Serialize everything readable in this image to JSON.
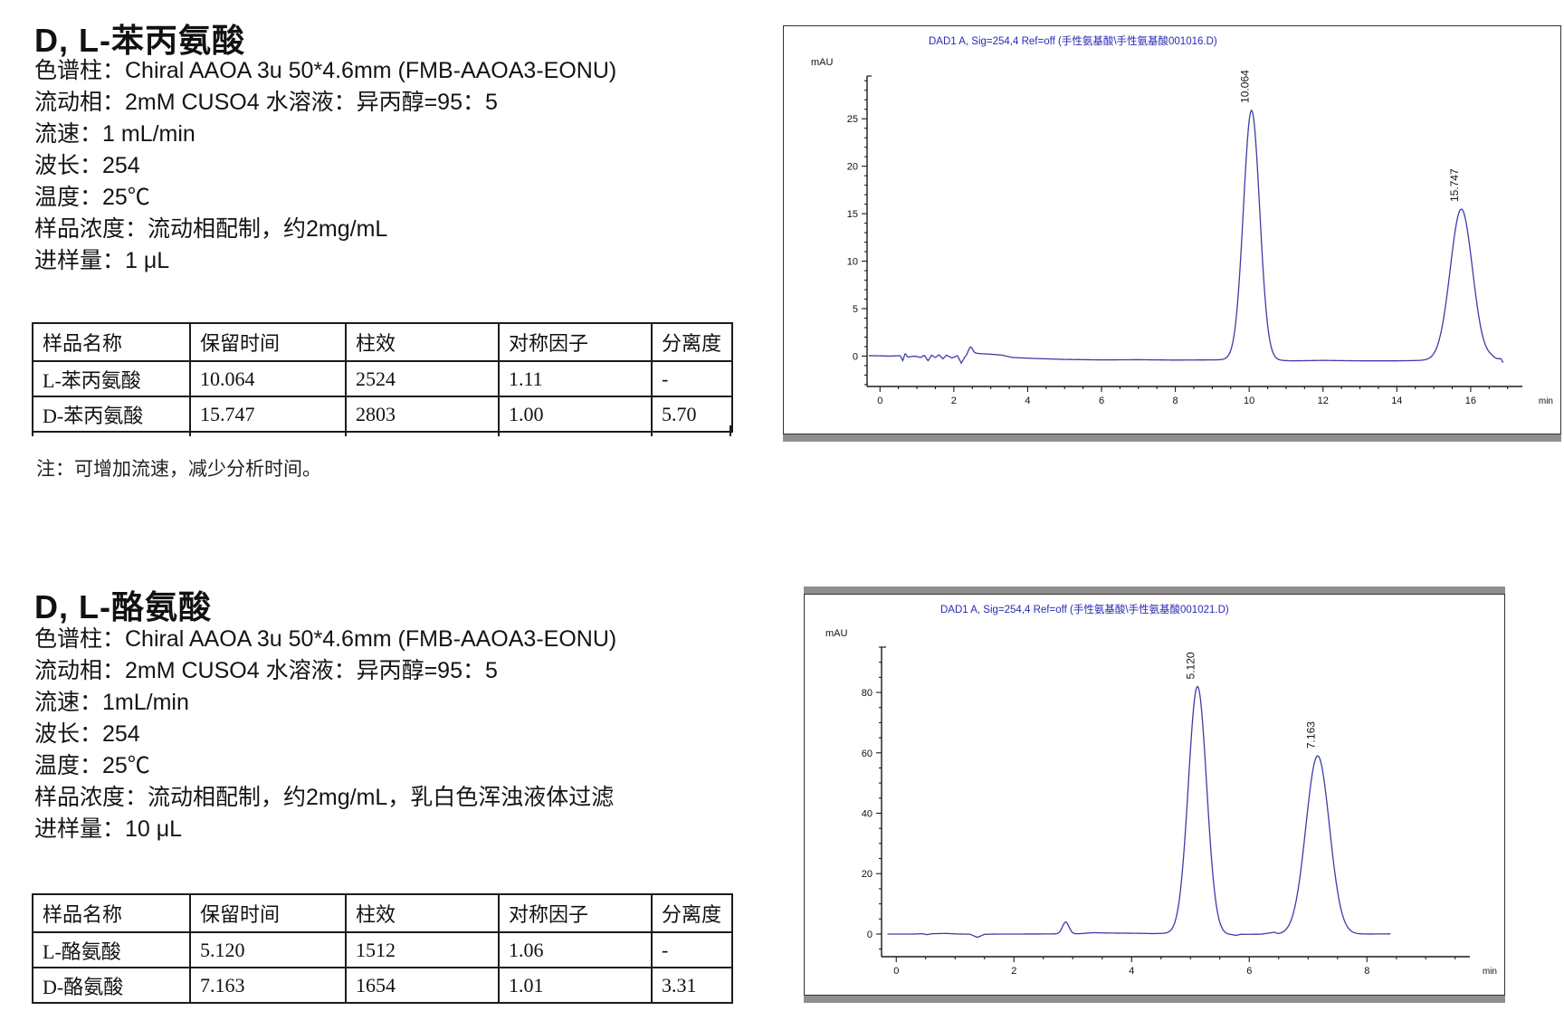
{
  "sections": [
    {
      "title": "D, L-苯丙氨酸",
      "params": [
        "色谱柱：Chiral AAOA 3u 50*4.6mm (FMB-AAOA3-EONU)",
        "流动相：2mM CUSO4 水溶液：异丙醇=95：5",
        "流速：1 mL/min",
        "波长：254",
        "温度：25℃",
        "样品浓度：流动相配制，约2mg/mL",
        "进样量：1 μL"
      ],
      "table": {
        "headers": [
          "样品名称",
          "保留时间",
          "柱效",
          "对称因子",
          "分离度"
        ],
        "rows": [
          [
            "L-苯丙氨酸",
            "10.064",
            "2524",
            "1.11",
            "-"
          ],
          [
            "D-苯丙氨酸",
            "15.747",
            "2803",
            "1.00",
            "5.70"
          ]
        ]
      },
      "note": "注：可增加流速，减少分析时间。"
    },
    {
      "title": "D, L-酪氨酸",
      "params": [
        "色谱柱：Chiral AAOA 3u 50*4.6mm (FMB-AAOA3-EONU)",
        "流动相：2mM CUSO4 水溶液：异丙醇=95：5",
        "流速：1mL/min",
        "波长：254",
        "温度：25℃",
        "样品浓度：流动相配制，约2mg/mL，乳白色浑浊液体过滤",
        "进样量：10 μL"
      ],
      "table": {
        "headers": [
          "样品名称",
          "保留时间",
          "柱效",
          "对称因子",
          "分离度"
        ],
        "rows": [
          [
            "L-酪氨酸",
            "5.120",
            "1512",
            "1.06",
            "-"
          ],
          [
            "D-酪氨酸",
            "7.163",
            "1654",
            "1.01",
            "3.31"
          ]
        ]
      },
      "note": ""
    }
  ],
  "chart_data": [
    {
      "type": "line",
      "title": "DAD1 A, Sig=254,4 Ref=off (手性氨基酸\\手性氨基酸001016.D)",
      "title_color": "#2a2ab2",
      "line_color": "#3c3ca8",
      "ylabel": "mAU",
      "xlabel": "min",
      "xlim": [
        -0.35,
        17.4
      ],
      "ylim": [
        -3.2,
        29.5
      ],
      "xticks": [
        0,
        2,
        4,
        6,
        8,
        10,
        12,
        14,
        16
      ],
      "yticks": [
        0,
        5,
        10,
        15,
        20,
        25
      ],
      "x_minor_step": 0.5,
      "y_minor_step": 1,
      "peaks": [
        {
          "label": "10.064",
          "center": 10.064,
          "height": 26.3,
          "sigma": 0.22
        },
        {
          "label": "15.747",
          "center": 15.747,
          "height": 15.9,
          "sigma": 0.3
        }
      ],
      "minor_peaks": [
        {
          "center": 2.45,
          "height": 0.85,
          "sigma": 0.06
        }
      ],
      "baseline": [
        [
          -0.3,
          0.05
        ],
        [
          0.3,
          0.0
        ],
        [
          0.55,
          0.05
        ],
        [
          0.62,
          -0.5
        ],
        [
          0.68,
          0.3
        ],
        [
          0.75,
          -0.1
        ],
        [
          0.95,
          0.0
        ],
        [
          1.1,
          -0.15
        ],
        [
          1.2,
          0.1
        ],
        [
          1.3,
          -0.5
        ],
        [
          1.4,
          0.1
        ],
        [
          1.5,
          -0.15
        ],
        [
          1.6,
          0.15
        ],
        [
          1.7,
          -0.3
        ],
        [
          1.8,
          0.1
        ],
        [
          1.95,
          -0.2
        ],
        [
          2.1,
          0.05
        ],
        [
          2.2,
          -0.75
        ],
        [
          2.3,
          -0.1
        ],
        [
          2.6,
          0.3
        ],
        [
          2.75,
          0.25
        ],
        [
          3.0,
          0.2
        ],
        [
          3.3,
          0.1
        ],
        [
          3.6,
          -0.15
        ],
        [
          4.2,
          -0.25
        ],
        [
          5.0,
          -0.35
        ],
        [
          6.0,
          -0.4
        ],
        [
          7.0,
          -0.38
        ],
        [
          8.0,
          -0.42
        ],
        [
          9.0,
          -0.4
        ],
        [
          9.4,
          -0.38
        ],
        [
          10.8,
          -0.45
        ],
        [
          11.2,
          -0.5
        ],
        [
          12.0,
          -0.45
        ],
        [
          13.0,
          -0.5
        ],
        [
          14.0,
          -0.5
        ],
        [
          14.8,
          -0.45
        ],
        [
          16.3,
          -0.4
        ],
        [
          16.55,
          -0.2
        ],
        [
          16.7,
          -0.35
        ],
        [
          16.82,
          -0.3
        ],
        [
          16.88,
          -0.7
        ]
      ],
      "trace_start": -0.3,
      "trace_end": 16.88
    },
    {
      "type": "line",
      "title": "DAD1 A, Sig=254,4 Ref=off (手性氨基酸\\手性氨基酸001021.D)",
      "title_color": "#2a2ab2",
      "line_color": "#3c3ca8",
      "ylabel": "mAU",
      "xlabel": "min",
      "xlim": [
        -0.25,
        9.75
      ],
      "ylim": [
        -7.5,
        95
      ],
      "xticks": [
        0,
        2,
        4,
        6,
        8
      ],
      "yticks": [
        0,
        20,
        40,
        60,
        80
      ],
      "x_minor_step": 0.5,
      "y_minor_step": 5,
      "peaks": [
        {
          "label": "5.120",
          "center": 5.12,
          "height": 82.0,
          "sigma": 0.155
        },
        {
          "label": "7.163",
          "center": 7.163,
          "height": 59.0,
          "sigma": 0.2
        }
      ],
      "minor_peaks": [
        {
          "center": 2.88,
          "height": 3.9,
          "sigma": 0.055
        }
      ],
      "baseline": [
        [
          -0.15,
          0.0
        ],
        [
          0.3,
          0.0
        ],
        [
          0.45,
          0.1
        ],
        [
          0.52,
          -0.2
        ],
        [
          0.6,
          0.1
        ],
        [
          0.7,
          0.15
        ],
        [
          0.85,
          0.2
        ],
        [
          1.0,
          0.05
        ],
        [
          1.25,
          -0.05
        ],
        [
          1.38,
          -1.1
        ],
        [
          1.5,
          -0.1
        ],
        [
          1.7,
          0.0
        ],
        [
          2.1,
          0.0
        ],
        [
          2.5,
          0.02
        ],
        [
          3.1,
          0.1
        ],
        [
          3.35,
          0.45
        ],
        [
          3.55,
          0.35
        ],
        [
          3.8,
          0.3
        ],
        [
          4.1,
          0.25
        ],
        [
          4.35,
          0.15
        ],
        [
          4.55,
          0.2
        ],
        [
          5.7,
          -0.25
        ],
        [
          5.78,
          -0.45
        ],
        [
          5.85,
          -0.1
        ],
        [
          6.2,
          -0.05
        ],
        [
          6.42,
          0.55
        ],
        [
          6.5,
          -0.05
        ],
        [
          6.9,
          0.0
        ],
        [
          7.9,
          0.0
        ],
        [
          8.15,
          0.02
        ],
        [
          8.4,
          0.05
        ]
      ],
      "trace_start": -0.15,
      "trace_end": 8.4
    }
  ]
}
